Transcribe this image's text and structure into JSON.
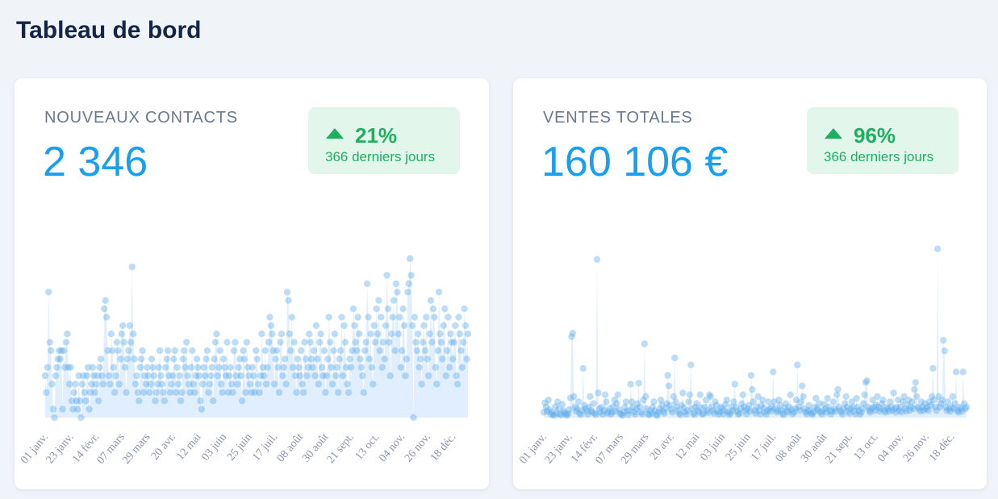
{
  "title": "Tableau de bord",
  "chart_data": [
    {
      "type": "line",
      "title": "NOUVEAUX CONTACTS",
      "total": "2 346",
      "change": "21%",
      "period": "366 derniers jours",
      "color": "#5aa9ec",
      "fill": "#dcebfd",
      "ylim": [
        0,
        21
      ],
      "categories": [
        "01 janv.",
        null,
        null,
        null,
        null,
        null,
        null,
        null,
        null,
        null,
        null,
        null,
        null,
        null,
        null,
        null,
        null,
        null,
        null,
        null,
        null,
        null,
        "23 janv.",
        null,
        null,
        null,
        null,
        null,
        null,
        null,
        null,
        null,
        null,
        null,
        null,
        null,
        null,
        null,
        null,
        null,
        null,
        null,
        null,
        null,
        "14 févr.",
        null,
        null,
        null,
        null,
        null,
        null,
        null,
        null,
        null,
        null,
        null,
        null,
        null,
        null,
        null,
        null,
        null,
        null,
        null,
        null,
        null,
        "07 mars",
        null,
        null,
        null,
        null,
        null,
        null,
        null,
        null,
        null,
        null,
        null,
        null,
        null,
        null,
        null,
        null,
        null,
        null,
        null,
        null,
        null,
        "29 mars",
        null,
        null,
        null,
        null,
        null,
        null,
        null,
        null,
        null,
        null,
        null,
        null,
        null,
        null,
        null,
        null,
        null,
        null,
        null,
        null,
        null,
        "20 avr.",
        null,
        null,
        null,
        null,
        null,
        null,
        null,
        null,
        null,
        null,
        null,
        null,
        null,
        null,
        null,
        null,
        null,
        null,
        null,
        null,
        null,
        "12 mai",
        null,
        null,
        null,
        null,
        null,
        null,
        null,
        null,
        null,
        null,
        null,
        null,
        null,
        null,
        null,
        null,
        null,
        null,
        null,
        null,
        null,
        "03 juin",
        null,
        null,
        null,
        null,
        null,
        null,
        null,
        null,
        null,
        null,
        null,
        null,
        null,
        null,
        null,
        null,
        null,
        null,
        null,
        null,
        null,
        "25 juin",
        null,
        null,
        null,
        null,
        null,
        null,
        null,
        null,
        null,
        null,
        null,
        null,
        null,
        null,
        null,
        null,
        null,
        null,
        null,
        null,
        null,
        "17 juil.",
        null,
        null,
        null,
        null,
        null,
        null,
        null,
        null,
        null,
        null,
        null,
        null,
        null,
        null,
        null,
        null,
        null,
        null,
        null,
        null,
        null,
        "08 août",
        null,
        null,
        null,
        null,
        null,
        null,
        null,
        null,
        null,
        null,
        null,
        null,
        null,
        null,
        null,
        null,
        null,
        null,
        null,
        null,
        null,
        "30 août",
        null,
        null,
        null,
        null,
        null,
        null,
        null,
        null,
        null,
        null,
        null,
        null,
        null,
        null,
        null,
        null,
        null,
        null,
        null,
        null,
        null,
        "21 sept.",
        null,
        null,
        null,
        null,
        null,
        null,
        null,
        null,
        null,
        null,
        null,
        null,
        null,
        null,
        null,
        null,
        null,
        null,
        null,
        null,
        null,
        "13 oct.",
        null,
        null,
        null,
        null,
        null,
        null,
        null,
        null,
        null,
        null,
        null,
        null,
        null,
        null,
        null,
        null,
        null,
        null,
        null,
        null,
        null,
        "04 nov.",
        null,
        null,
        null,
        null,
        null,
        null,
        null,
        null,
        null,
        null,
        null,
        null,
        null,
        null,
        null,
        null,
        null,
        null,
        null,
        null,
        null,
        "26 nov.",
        null,
        null,
        null,
        null,
        null,
        null,
        null,
        null,
        null,
        null,
        null,
        null,
        null,
        null,
        null,
        null,
        null,
        null,
        null,
        null,
        null,
        "18 déc.",
        null,
        null,
        null,
        null,
        null,
        null,
        null,
        null,
        null,
        null,
        null,
        null,
        null
      ],
      "values": [
        5,
        3,
        6,
        15,
        9,
        8,
        4,
        1,
        0,
        5,
        6,
        7,
        8,
        7,
        8,
        1,
        8,
        6,
        9,
        10,
        6,
        4,
        6,
        2,
        1,
        3,
        4,
        2,
        1,
        5,
        2,
        0,
        4,
        5,
        3,
        2,
        5,
        6,
        1,
        3,
        4,
        6,
        5,
        3,
        4,
        5,
        2,
        6,
        7,
        5,
        4,
        13,
        14,
        12,
        8,
        5,
        4,
        10,
        8,
        6,
        3,
        5,
        9,
        8,
        4,
        7,
        10,
        11,
        9,
        6,
        3,
        7,
        8,
        11,
        9,
        18,
        10,
        7,
        4,
        5,
        3,
        2,
        6,
        7,
        8,
        3,
        5,
        4,
        6,
        5,
        3,
        4,
        7,
        6,
        5,
        2,
        3,
        4,
        6,
        8,
        5,
        4,
        3,
        2,
        6,
        7,
        8,
        5,
        3,
        4,
        5,
        7,
        8,
        3,
        6,
        4,
        5,
        2,
        3,
        7,
        8,
        6,
        9,
        5,
        4,
        3,
        6,
        8,
        4,
        3,
        5,
        7,
        6,
        5,
        2,
        1,
        4,
        6,
        5,
        7,
        8,
        3,
        4,
        5,
        6,
        2,
        7,
        9,
        10,
        5,
        6,
        8,
        4,
        3,
        7,
        6,
        5,
        9,
        3,
        5,
        6,
        4,
        3,
        8,
        9,
        5,
        4,
        6,
        7,
        5,
        2,
        8,
        7,
        3,
        9,
        6,
        5,
        4,
        3,
        6,
        5,
        3,
        8,
        7,
        4,
        3,
        5,
        10,
        6,
        5,
        8,
        4,
        6,
        9,
        12,
        11,
        10,
        8,
        4,
        7,
        8,
        6,
        3,
        9,
        10,
        5,
        6,
        7,
        4,
        15,
        14,
        10,
        8,
        12,
        6,
        9,
        5,
        3,
        7,
        6,
        5,
        8,
        4,
        3,
        9,
        7,
        5,
        6,
        10,
        9,
        7,
        6,
        8,
        5,
        11,
        7,
        4,
        9,
        10,
        6,
        5,
        8,
        3,
        5,
        7,
        12,
        9,
        6,
        4,
        8,
        10,
        5,
        6,
        3,
        7,
        8,
        12,
        5,
        11,
        9,
        6,
        4,
        3,
        7,
        6,
        8,
        13,
        11,
        9,
        8,
        12,
        10,
        7,
        6,
        5,
        3,
        8,
        9,
        16,
        12,
        7,
        10,
        6,
        4,
        11,
        9,
        13,
        10,
        14,
        8,
        12,
        6,
        9,
        7,
        11,
        17,
        13,
        9,
        5,
        10,
        12,
        14,
        8,
        16,
        15,
        10,
        12,
        6,
        8,
        13,
        11,
        5,
        7,
        15,
        16,
        19,
        17,
        11,
        0,
        12,
        9,
        8,
        10,
        6,
        7,
        4,
        9,
        11,
        8,
        12,
        7,
        5,
        10,
        14,
        9,
        13,
        12,
        6,
        4,
        8,
        15,
        10,
        9,
        7,
        11,
        13,
        5,
        8,
        12,
        6,
        10,
        9,
        7,
        9,
        11,
        5,
        4,
        12,
        10,
        8,
        6,
        9,
        13,
        11,
        7,
        10
      ]
    },
    {
      "type": "line",
      "title": "VENTES TOTALES",
      "total": "160 106 €",
      "change": "96%",
      "period": "366 derniers jours",
      "color": "#5aa9ec",
      "fill": "#dcebfd",
      "ylim": [
        0,
        5000
      ],
      "categories": [
        "01 janv.",
        null,
        null,
        null,
        null,
        null,
        null,
        null,
        null,
        null,
        null,
        null,
        null,
        null,
        null,
        null,
        null,
        null,
        null,
        null,
        null,
        null,
        "23 janv.",
        null,
        null,
        null,
        null,
        null,
        null,
        null,
        null,
        null,
        null,
        null,
        null,
        null,
        null,
        null,
        null,
        null,
        null,
        null,
        null,
        null,
        "14 févr.",
        null,
        null,
        null,
        null,
        null,
        null,
        null,
        null,
        null,
        null,
        null,
        null,
        null,
        null,
        null,
        null,
        null,
        null,
        null,
        null,
        null,
        "07 mars",
        null,
        null,
        null,
        null,
        null,
        null,
        null,
        null,
        null,
        null,
        null,
        null,
        null,
        null,
        null,
        null,
        null,
        null,
        null,
        null,
        null,
        "29 mars",
        null,
        null,
        null,
        null,
        null,
        null,
        null,
        null,
        null,
        null,
        null,
        null,
        null,
        null,
        null,
        null,
        null,
        null,
        null,
        null,
        null,
        "20 avr.",
        null,
        null,
        null,
        null,
        null,
        null,
        null,
        null,
        null,
        null,
        null,
        null,
        null,
        null,
        null,
        null,
        null,
        null,
        null,
        null,
        null,
        "12 mai",
        null,
        null,
        null,
        null,
        null,
        null,
        null,
        null,
        null,
        null,
        null,
        null,
        null,
        null,
        null,
        null,
        null,
        null,
        null,
        null,
        null,
        "03 juin",
        null,
        null,
        null,
        null,
        null,
        null,
        null,
        null,
        null,
        null,
        null,
        null,
        null,
        null,
        null,
        null,
        null,
        null,
        null,
        null,
        null,
        "25 juin",
        null,
        null,
        null,
        null,
        null,
        null,
        null,
        null,
        null,
        null,
        null,
        null,
        null,
        null,
        null,
        null,
        null,
        null,
        null,
        null,
        null,
        "17 juil.",
        null,
        null,
        null,
        null,
        null,
        null,
        null,
        null,
        null,
        null,
        null,
        null,
        null,
        null,
        null,
        null,
        null,
        null,
        null,
        null,
        null,
        "08 août",
        null,
        null,
        null,
        null,
        null,
        null,
        null,
        null,
        null,
        null,
        null,
        null,
        null,
        null,
        null,
        null,
        null,
        null,
        null,
        null,
        null,
        "30 août",
        null,
        null,
        null,
        null,
        null,
        null,
        null,
        null,
        null,
        null,
        null,
        null,
        null,
        null,
        null,
        null,
        null,
        null,
        null,
        null,
        null,
        "21 sept.",
        null,
        null,
        null,
        null,
        null,
        null,
        null,
        null,
        null,
        null,
        null,
        null,
        null,
        null,
        null,
        null,
        null,
        null,
        null,
        null,
        null,
        "13 oct.",
        null,
        null,
        null,
        null,
        null,
        null,
        null,
        null,
        null,
        null,
        null,
        null,
        null,
        null,
        null,
        null,
        null,
        null,
        null,
        null,
        null,
        "04 nov.",
        null,
        null,
        null,
        null,
        null,
        null,
        null,
        null,
        null,
        null,
        null,
        null,
        null,
        null,
        null,
        null,
        null,
        null,
        null,
        null,
        null,
        "26 nov.",
        null,
        null,
        null,
        null,
        null,
        null,
        null,
        null,
        null,
        null,
        null,
        null,
        null,
        null,
        null,
        null,
        null,
        null,
        null,
        null,
        null,
        "18 déc.",
        null,
        null,
        null,
        null,
        null,
        null,
        null,
        null,
        null,
        null,
        null,
        null,
        null
      ],
      "values": [
        150,
        420,
        300,
        180,
        500,
        220,
        90,
        160,
        80,
        60,
        310,
        120,
        450,
        250,
        100,
        70,
        380,
        200,
        140,
        90,
        60,
        110,
        230,
        560,
        2300,
        2400,
        600,
        300,
        180,
        250,
        450,
        120,
        80,
        200,
        1400,
        350,
        250,
        180,
        90,
        300,
        600,
        200,
        150,
        400,
        120,
        80,
        4500,
        700,
        250,
        150,
        300,
        90,
        200,
        650,
        450,
        120,
        180,
        260,
        90,
        150,
        320,
        500,
        180,
        400,
        650,
        230,
        120,
        90,
        60,
        150,
        300,
        450,
        180,
        80,
        200,
        950,
        450,
        300,
        160,
        90,
        250,
        400,
        980,
        300,
        150,
        100,
        500,
        2100,
        600,
        250,
        100,
        80,
        200,
        120,
        300,
        450,
        190,
        80,
        60,
        150,
        240,
        500,
        350,
        180,
        120,
        260,
        400,
        1200,
        900,
        350,
        230,
        150,
        600,
        1700,
        450,
        300,
        200,
        120,
        80,
        350,
        700,
        280,
        160,
        90,
        200,
        450,
        650,
        1500,
        250,
        120,
        80,
        300,
        400,
        200,
        150,
        650,
        280,
        90,
        120,
        300,
        500,
        200,
        140,
        650,
        600,
        300,
        200,
        120,
        450,
        350,
        180,
        90,
        150,
        300,
        260,
        100,
        200,
        380,
        500,
        160,
        80,
        120,
        300,
        200,
        450,
        950,
        300,
        180,
        90,
        120,
        250,
        400,
        650,
        300,
        200,
        100,
        250,
        350,
        180,
        1200,
        800,
        450,
        200,
        120,
        300,
        600,
        200,
        90,
        350,
        500,
        280,
        150,
        90,
        200,
        450,
        250,
        180,
        300,
        1300,
        450,
        250,
        150,
        200,
        500,
        350,
        200,
        120,
        80,
        280,
        400,
        200,
        150,
        300,
        650,
        220,
        100,
        150,
        250,
        500,
        1500,
        300,
        200,
        450,
        900,
        600,
        250,
        150,
        100,
        200,
        350,
        200,
        120,
        80,
        150,
        300,
        550,
        250,
        200,
        400,
        150,
        90,
        200,
        380,
        250,
        150,
        550,
        300,
        200,
        100,
        180,
        450,
        250,
        180,
        650,
        800,
        300,
        200,
        150,
        90,
        250,
        400,
        600,
        300,
        180,
        120,
        250,
        450,
        300,
        180,
        100,
        550,
        300,
        200,
        90,
        150,
        250,
        400,
        650,
        1000,
        1050,
        300,
        200,
        150,
        250,
        500,
        300,
        200,
        350,
        600,
        300,
        180,
        250,
        400,
        500,
        200,
        150,
        300,
        250,
        180,
        450,
        300,
        200,
        700,
        250,
        150,
        300,
        500,
        200,
        300,
        150,
        450,
        600,
        250,
        180,
        350,
        500,
        200,
        300,
        450,
        250,
        800,
        1000,
        600,
        300,
        250,
        180,
        450,
        300,
        200,
        400,
        250,
        300,
        200,
        450,
        350,
        600,
        1400,
        500,
        300,
        200,
        4800,
        600,
        300,
        400,
        500,
        2200,
        1900,
        300,
        200,
        450,
        250,
        180,
        300,
        600,
        250,
        400,
        1300,
        200,
        150,
        300,
        250,
        180,
        1300,
        400,
        250,
        300
      ]
    }
  ]
}
